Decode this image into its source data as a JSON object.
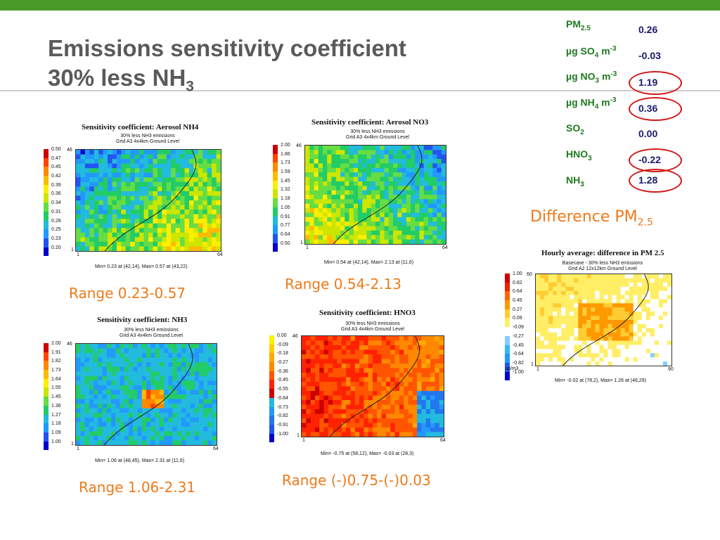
{
  "title_line1": "Emissions sensitivity coefficient",
  "title_line2_pre": "30% less NH",
  "title_line2_sub": "3",
  "species": [
    {
      "label": "PM",
      "sub": "2.5",
      "sup": "",
      "suffix": "",
      "value": "0.26",
      "circled": false
    },
    {
      "label": "µg SO",
      "sub": "4",
      "sup": "-3",
      "suffix": " m",
      "value": "-0.03",
      "circled": false
    },
    {
      "label": "µg NO",
      "sub": "3",
      "sup": "-3",
      "suffix": " m",
      "value": "1.19",
      "circled": true
    },
    {
      "label": "µg NH",
      "sub": "4",
      "sup": "-3",
      "suffix": " m",
      "value": "0.36",
      "circled": true
    },
    {
      "label": "SO",
      "sub": "2",
      "sup": "",
      "suffix": "",
      "value": "0.00",
      "circled": false
    },
    {
      "label": "HNO",
      "sub": "3",
      "sup": "",
      "suffix": "",
      "value": "-0.22",
      "circled": true
    },
    {
      "label": "NH",
      "sub": "3",
      "sup": "",
      "suffix": "",
      "value": "1.28",
      "circled": true
    }
  ],
  "difference_label": "Difference PM",
  "difference_sub": "2.5",
  "plots": [
    {
      "title": "Sensitivity coefficient: Aerosol NH4",
      "sub1": "30% less NH3 emissions",
      "sub2": "Grid A3 4x4km Ground Level",
      "ticks": [
        "0.50",
        "0.47",
        "0.45",
        "0.42",
        "0.39",
        "0.36",
        "0.34",
        "0.31",
        "0.28",
        "0.25",
        "0.23",
        "0.20"
      ],
      "xmin": "1",
      "xmax": "64",
      "ymax": "46",
      "ymin": "1",
      "footer": "Min=    0.23 at (42,14),  Max=    0.57 at (43,22)",
      "range": "Range 0.23-0.57",
      "palette": "nh4"
    },
    {
      "title": "Sensitivity coefficient: Aerosol NO3",
      "sub1": "30% less NH3 emissions",
      "sub2": "Grid A3 4x4km Ground Level",
      "ticks": [
        "2.00",
        "1.86",
        "1.73",
        "1.59",
        "1.45",
        "1.32",
        "1.18",
        "1.05",
        "0.91",
        "0.77",
        "0.64",
        "0.50"
      ],
      "xmin": "1",
      "xmax": "64",
      "ymax": "46",
      "ymin": "1",
      "footer": "Min=    0.54 at (42,14),  Max=    2.13 at (11,6)",
      "range": "Range 0.54-2.13",
      "palette": "no3"
    },
    {
      "title": "Sensitivity coefficient: NH3",
      "sub1": "30% less NH3 emissions",
      "sub2": "Grid A3 4x4km Ground Level",
      "ticks": [
        "2.00",
        "1.91",
        "1.82",
        "1.73",
        "1.64",
        "1.55",
        "1.45",
        "1.36",
        "1.27",
        "1.18",
        "1.09",
        "1.00"
      ],
      "xmin": "1",
      "xmax": "64",
      "ymax": "46",
      "ymin": "1",
      "footer": "Min=    1.06 at (48,45),  Max=    2.31 at (11,6)",
      "range": "Range 1.06-2.31",
      "palette": "nh3"
    },
    {
      "title": "Sensitivity coefficient: HNO3",
      "sub1": "30% less NH3 emissions",
      "sub2": "Grid A3 4x4km Ground Level",
      "ticks": [
        "0.00",
        "-0.09",
        "-0.18",
        "-0.27",
        "-0.36",
        "-0.45",
        "-0.55",
        "-0.64",
        "-0.73",
        "-0.82",
        "-0.91",
        "-1.00"
      ],
      "xmin": "1",
      "xmax": "64",
      "ymax": "46",
      "ymin": "1",
      "footer": "Min=    -0.75 at (58,12),  Max=    -0.03 at (28,3)",
      "range": "Range (-)0.75-(-)0.03",
      "palette": "hno3"
    },
    {
      "title": "Hourly average: difference in PM 2.5",
      "sub1": "Basecase - 30% less NH3 emissions",
      "sub2": "Grid A2 12x12km Ground Level",
      "ticks": [
        "1.00",
        "0.82",
        "0.64",
        "0.45",
        "0.27",
        "0.09",
        "-0.09",
        "-0.27",
        "-0.45",
        "-0.64",
        "-0.82",
        "-1.00"
      ],
      "unit": "ug/m3",
      "xmin": "1",
      "xmax": "90",
      "ymax": "60",
      "ymin": "1",
      "footer": "Min=    -0.02 at (78,2),  Max=    1.26 at (46,29)",
      "range": "",
      "palette": "pm"
    }
  ],
  "colors": {
    "accent_green": "#4a9a2a",
    "title_gray": "#5a5a5a",
    "label_green": "#1f7a1f",
    "value_navy": "#1a1a6e",
    "highlight_red": "#d01818",
    "range_orange": "#ee7a1a"
  }
}
